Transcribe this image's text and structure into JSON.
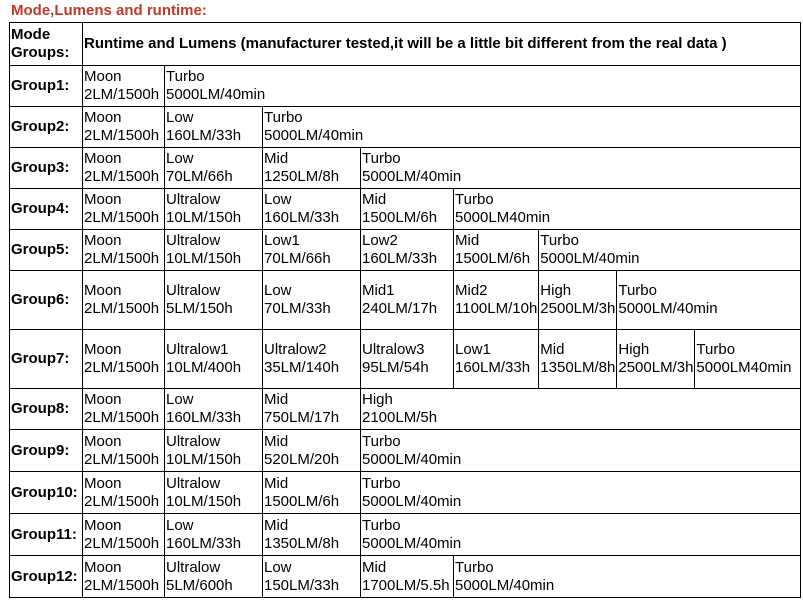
{
  "title": "Mode,Lumens and runtime:",
  "header": {
    "col1_line1": "Mode",
    "col1_line2": "Groups:",
    "col2": "Runtime and Lumens (manufacturer tested,it will be a little bit different from the real data )"
  },
  "groups": [
    {
      "label": "Group1:",
      "modes": [
        [
          "Moon",
          "2LM/1500h"
        ],
        [
          "Turbo",
          "5000LM/40min"
        ]
      ]
    },
    {
      "label": "Group2:",
      "modes": [
        [
          "Moon",
          "2LM/1500h"
        ],
        [
          "Low",
          "160LM/33h"
        ],
        [
          "Turbo",
          "5000LM/40min"
        ]
      ]
    },
    {
      "label": "Group3:",
      "modes": [
        [
          "Moon",
          "2LM/1500h"
        ],
        [
          "Low",
          "70LM/66h"
        ],
        [
          "Mid",
          "1250LM/8h"
        ],
        [
          "Turbo",
          "5000LM/40min"
        ]
      ]
    },
    {
      "label": "Group4:",
      "modes": [
        [
          "Moon",
          "2LM/1500h"
        ],
        [
          "Ultralow",
          "10LM/150h"
        ],
        [
          "Low",
          "160LM/33h"
        ],
        [
          "Mid",
          "1500LM/6h"
        ],
        [
          "Turbo",
          "5000LM40min"
        ]
      ]
    },
    {
      "label": "Group5:",
      "modes": [
        [
          "Moon",
          "2LM/1500h"
        ],
        [
          "Ultralow",
          "10LM/150h"
        ],
        [
          "Low1",
          "70LM/66h"
        ],
        [
          "Low2",
          "160LM/33h"
        ],
        [
          "Mid",
          "1500LM/6h"
        ],
        [
          "Turbo",
          "5000LM/40min"
        ]
      ]
    },
    {
      "label": "Group6:",
      "modes": [
        [
          "Moon",
          "2LM/1500h"
        ],
        [
          "Ultralow",
          "5LM/150h"
        ],
        [
          "Low",
          "70LM/33h"
        ],
        [
          "Mid1",
          "240LM/17h"
        ],
        [
          "Mid2",
          "1100LM/10h"
        ],
        [
          "High",
          "2500LM/3h"
        ],
        [
          "Turbo",
          "5000LM/40min"
        ]
      ]
    },
    {
      "label": "Group7:",
      "modes": [
        [
          "Moon",
          "2LM/1500h"
        ],
        [
          "Ultralow1",
          "10LM/400h"
        ],
        [
          "Ultralow2",
          "35LM/140h"
        ],
        [
          "Ultralow3",
          "95LM/54h"
        ],
        [
          "Low1",
          "160LM/33h"
        ],
        [
          "Mid",
          "1350LM/8h"
        ],
        [
          "High",
          "2500LM/3h"
        ],
        [
          "Turbo",
          "5000LM40min"
        ]
      ]
    },
    {
      "label": "Group8:",
      "modes": [
        [
          "Moon",
          "2LM/1500h"
        ],
        [
          "Low",
          "160LM/33h"
        ],
        [
          "Mid",
          "750LM/17h"
        ],
        [
          "High",
          "2100LM/5h"
        ]
      ]
    },
    {
      "label": "Group9:",
      "modes": [
        [
          "Moon",
          "2LM/1500h"
        ],
        [
          "Ultralow",
          "10LM/150h"
        ],
        [
          "Mid",
          "520LM/20h"
        ],
        [
          "Turbo",
          "5000LM/40min"
        ]
      ]
    },
    {
      "label": "Group10:",
      "modes": [
        [
          "Moon",
          "2LM/1500h"
        ],
        [
          "Ultralow",
          "10LM/150h"
        ],
        [
          "Mid",
          "1500LM/6h"
        ],
        [
          "Turbo",
          "5000LM/40min"
        ]
      ]
    },
    {
      "label": "Group11:",
      "modes": [
        [
          "Moon",
          "2LM/1500h"
        ],
        [
          "Low",
          "160LM/33h"
        ],
        [
          "Mid",
          "1350LM/8h"
        ],
        [
          "Turbo",
          "5000LM/40min"
        ]
      ]
    },
    {
      "label": "Group12:",
      "modes": [
        [
          "Moon",
          "2LM/1500h"
        ],
        [
          "Ultralow",
          "5LM/600h"
        ],
        [
          "Low",
          "150LM/33h"
        ],
        [
          "Mid",
          "1700LM/5.5h"
        ],
        [
          "Turbo",
          "5000LM/40min"
        ]
      ]
    }
  ]
}
